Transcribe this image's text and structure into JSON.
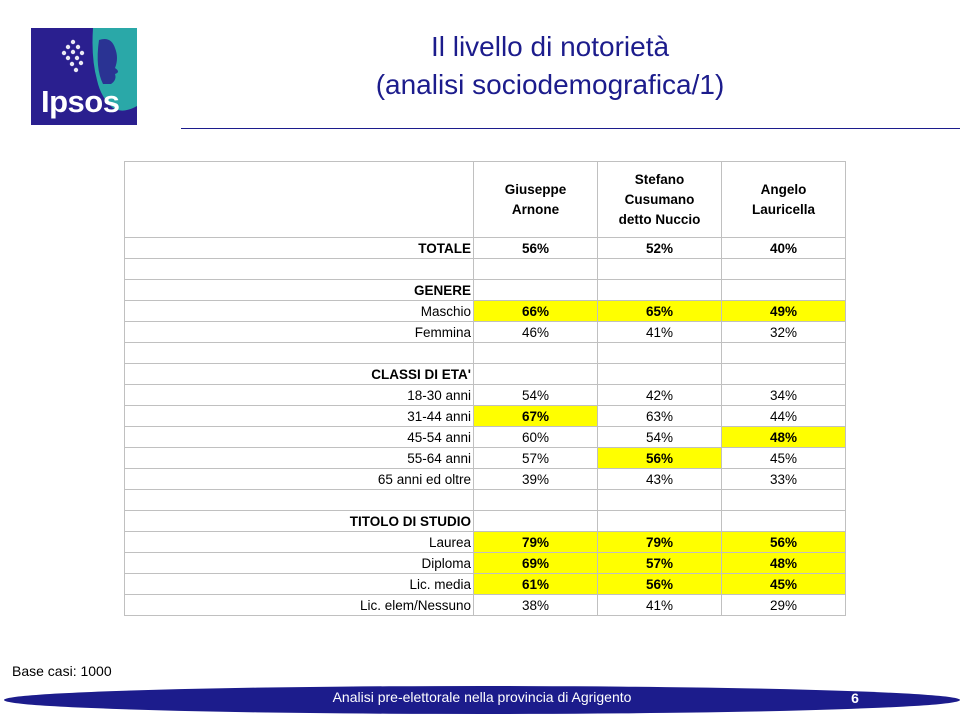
{
  "logo": {
    "text": "Ipsos",
    "colors": {
      "background": "#2a1f8f",
      "accent": "#2aa8a8"
    }
  },
  "title": {
    "line1": "Il livello di notorietà",
    "line2": "(analisi sociodemografica/1)",
    "color": "#1c1c8c"
  },
  "table": {
    "headers": [
      [
        "Giuseppe",
        "Arnone"
      ],
      [
        "Stefano",
        "Cusumano",
        "detto Nuccio"
      ],
      [
        "Angelo",
        "Lauricella"
      ]
    ],
    "highlight_color": "#ffff00",
    "rows": [
      {
        "label": "TOTALE",
        "bold": true,
        "values": [
          "56%",
          "52%",
          "40%"
        ],
        "bold_values": [
          true,
          true,
          true
        ],
        "highlight": [
          false,
          false,
          false
        ]
      },
      {
        "label": "",
        "bold": false,
        "values": [
          "",
          "",
          ""
        ],
        "bold_values": [
          false,
          false,
          false
        ],
        "highlight": [
          false,
          false,
          false
        ]
      },
      {
        "label": "GENERE",
        "bold": true,
        "values": [
          "",
          "",
          ""
        ],
        "bold_values": [
          false,
          false,
          false
        ],
        "highlight": [
          false,
          false,
          false
        ]
      },
      {
        "label": "Maschio",
        "bold": false,
        "values": [
          "66%",
          "65%",
          "49%"
        ],
        "bold_values": [
          true,
          true,
          true
        ],
        "highlight": [
          true,
          true,
          true
        ]
      },
      {
        "label": "Femmina",
        "bold": false,
        "values": [
          "46%",
          "41%",
          "32%"
        ],
        "bold_values": [
          false,
          false,
          false
        ],
        "highlight": [
          false,
          false,
          false
        ]
      },
      {
        "label": "",
        "bold": false,
        "values": [
          "",
          "",
          ""
        ],
        "bold_values": [
          false,
          false,
          false
        ],
        "highlight": [
          false,
          false,
          false
        ]
      },
      {
        "label": "CLASSI DI ETA'",
        "bold": true,
        "values": [
          "",
          "",
          ""
        ],
        "bold_values": [
          false,
          false,
          false
        ],
        "highlight": [
          false,
          false,
          false
        ]
      },
      {
        "label": "18-30 anni",
        "bold": false,
        "values": [
          "54%",
          "42%",
          "34%"
        ],
        "bold_values": [
          false,
          false,
          false
        ],
        "highlight": [
          false,
          false,
          false
        ]
      },
      {
        "label": "31-44 anni",
        "bold": false,
        "values": [
          "67%",
          "63%",
          "44%"
        ],
        "bold_values": [
          true,
          false,
          false
        ],
        "highlight": [
          true,
          false,
          false
        ]
      },
      {
        "label": "45-54 anni",
        "bold": false,
        "values": [
          "60%",
          "54%",
          "48%"
        ],
        "bold_values": [
          false,
          false,
          true
        ],
        "highlight": [
          false,
          false,
          true
        ]
      },
      {
        "label": "55-64 anni",
        "bold": false,
        "values": [
          "57%",
          "56%",
          "45%"
        ],
        "bold_values": [
          false,
          true,
          false
        ],
        "highlight": [
          false,
          true,
          false
        ]
      },
      {
        "label": "65 anni ed oltre",
        "bold": false,
        "values": [
          "39%",
          "43%",
          "33%"
        ],
        "bold_values": [
          false,
          false,
          false
        ],
        "highlight": [
          false,
          false,
          false
        ]
      },
      {
        "label": "",
        "bold": false,
        "values": [
          "",
          "",
          ""
        ],
        "bold_values": [
          false,
          false,
          false
        ],
        "highlight": [
          false,
          false,
          false
        ]
      },
      {
        "label": "TITOLO DI STUDIO",
        "bold": true,
        "values": [
          "",
          "",
          ""
        ],
        "bold_values": [
          false,
          false,
          false
        ],
        "highlight": [
          false,
          false,
          false
        ]
      },
      {
        "label": "Laurea",
        "bold": false,
        "values": [
          "79%",
          "79%",
          "56%"
        ],
        "bold_values": [
          true,
          true,
          true
        ],
        "highlight": [
          true,
          true,
          true
        ]
      },
      {
        "label": "Diploma",
        "bold": false,
        "values": [
          "69%",
          "57%",
          "48%"
        ],
        "bold_values": [
          true,
          true,
          true
        ],
        "highlight": [
          true,
          true,
          true
        ]
      },
      {
        "label": "Lic. media",
        "bold": false,
        "values": [
          "61%",
          "56%",
          "45%"
        ],
        "bold_values": [
          true,
          true,
          true
        ],
        "highlight": [
          true,
          true,
          true
        ]
      },
      {
        "label": "Lic. elem/Nessuno",
        "bold": false,
        "values": [
          "38%",
          "41%",
          "29%"
        ],
        "bold_values": [
          false,
          false,
          false
        ],
        "highlight": [
          false,
          false,
          false
        ]
      }
    ]
  },
  "base_note": "Base casi: 1000",
  "footer": {
    "text": "Analisi pre-elettorale nella provincia di Agrigento",
    "page": "6",
    "color": "#1c1c8c"
  }
}
